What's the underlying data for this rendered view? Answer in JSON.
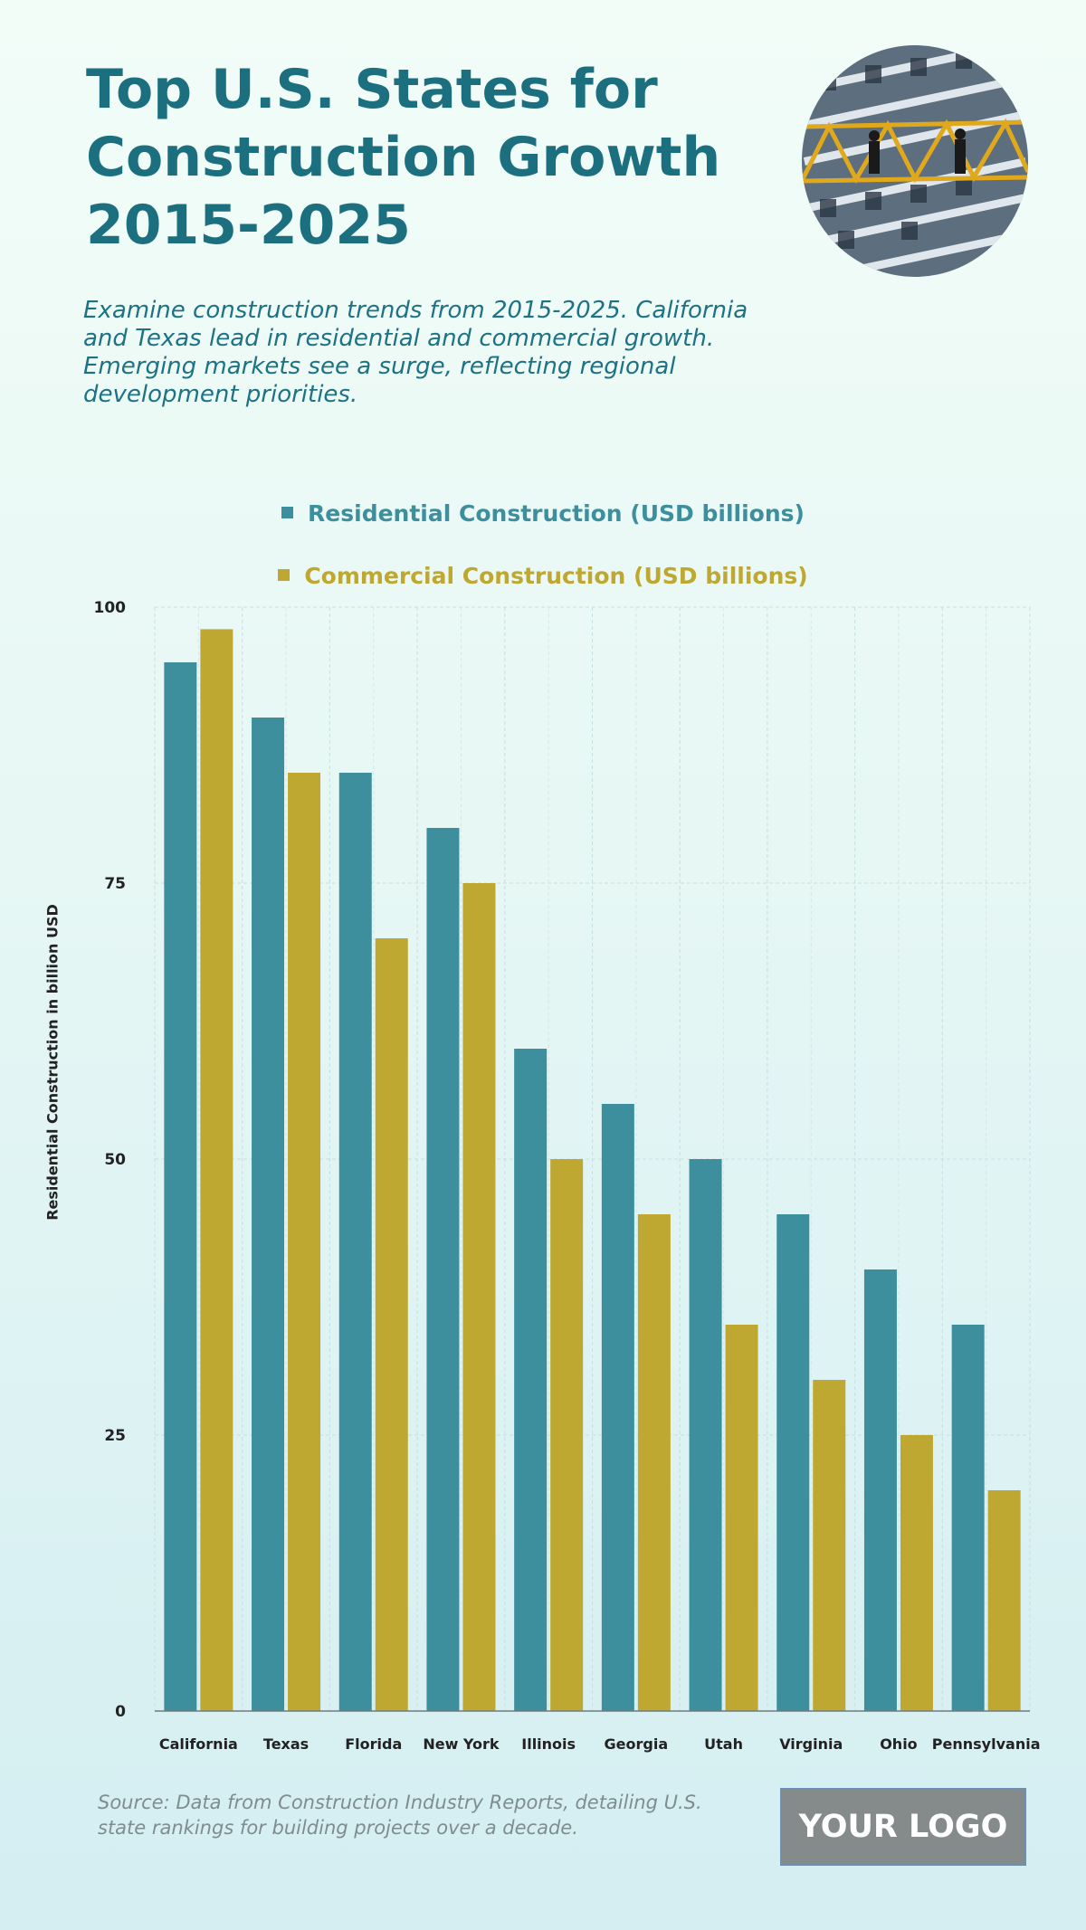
{
  "header": {
    "title": "Top U.S. States for Construction Growth 2015-2025",
    "subtitle": "Examine construction trends from 2015-2025. California and Texas lead in residential and commercial growth. Emerging markets see a surge, reflecting regional development priorities."
  },
  "colors": {
    "residential": "#3d8f9e",
    "commercial": "#bfa832",
    "title": "#1b6f7f"
  },
  "chart_data": {
    "type": "bar",
    "categories": [
      "California",
      "Texas",
      "Florida",
      "New York",
      "Illinois",
      "Georgia",
      "Utah",
      "Virginia",
      "Ohio",
      "Pennsylvania"
    ],
    "series": [
      {
        "name": "Residential Construction (USD billions)",
        "values": [
          95,
          90,
          85,
          80,
          60,
          55,
          50,
          45,
          40,
          35
        ]
      },
      {
        "name": "Commercial Construction (USD billions)",
        "values": [
          98,
          85,
          70,
          75,
          50,
          45,
          35,
          30,
          25,
          20
        ]
      }
    ],
    "ylabel": "Residential Construction in billion USD",
    "xlabel": "",
    "ylim": [
      0,
      100
    ],
    "yticks": [
      0,
      25,
      50,
      75,
      100
    ],
    "grid": true,
    "legend_position": "top"
  },
  "footer": {
    "source": "Source: Data from Construction Industry Reports, detailing U.S. state rankings for building projects over a decade.",
    "logo_text": "YOUR LOGO"
  }
}
